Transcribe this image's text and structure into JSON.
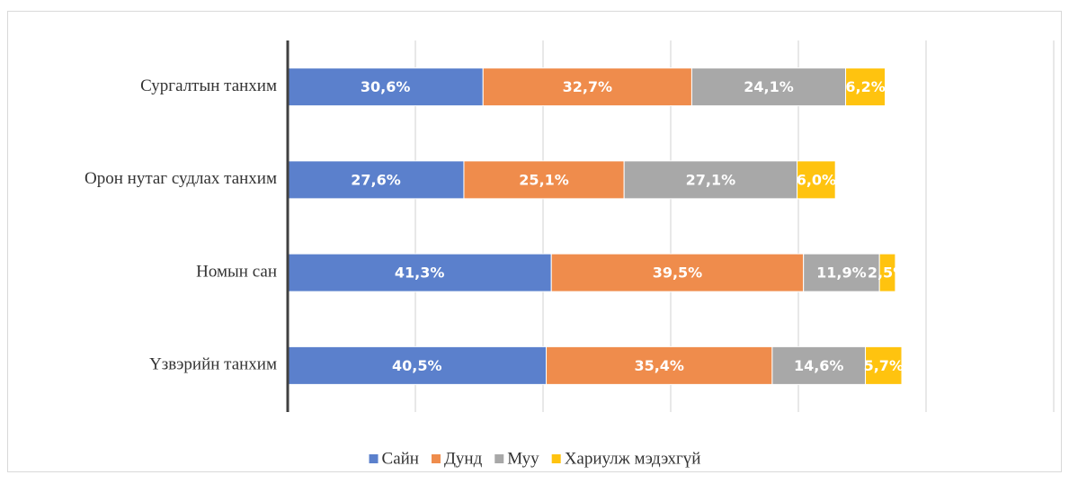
{
  "chart_data": {
    "type": "stacked-barh",
    "categories": [
      "Сургалтын танхим",
      "Орон нутаг судлах танхим",
      "Номын сан",
      "Үзвэрийн танхим"
    ],
    "series": [
      {
        "name": "Сайн",
        "color": "#5b80cc",
        "values": [
          30.6,
          27.6,
          41.3,
          40.5
        ],
        "value_labels": [
          "30,6%",
          "27,6%",
          "41,3%",
          "40,5%"
        ]
      },
      {
        "name": "Дунд",
        "color": "#ef8c4c",
        "values": [
          32.7,
          25.1,
          39.5,
          35.4
        ],
        "value_labels": [
          "32,7%",
          "25,1%",
          "39,5%",
          "35,4%"
        ]
      },
      {
        "name": "Муу",
        "color": "#a8a8a8",
        "values": [
          24.1,
          27.1,
          11.9,
          14.6
        ],
        "value_labels": [
          "24,1%",
          "27,1%",
          "11,9%",
          "14,6%"
        ]
      },
      {
        "name": "Хариулж мэдэхгүй",
        "color": "#ffc30f",
        "values": [
          6.2,
          6.0,
          2.5,
          5.7
        ],
        "value_labels": [
          "6,2%",
          "6,0%",
          "2,5%",
          "5,7%"
        ]
      }
    ],
    "xlim": [
      0,
      120
    ],
    "xticks": [
      0,
      20,
      40,
      60,
      80,
      100,
      120
    ],
    "grid": true,
    "legend": "bottom"
  }
}
